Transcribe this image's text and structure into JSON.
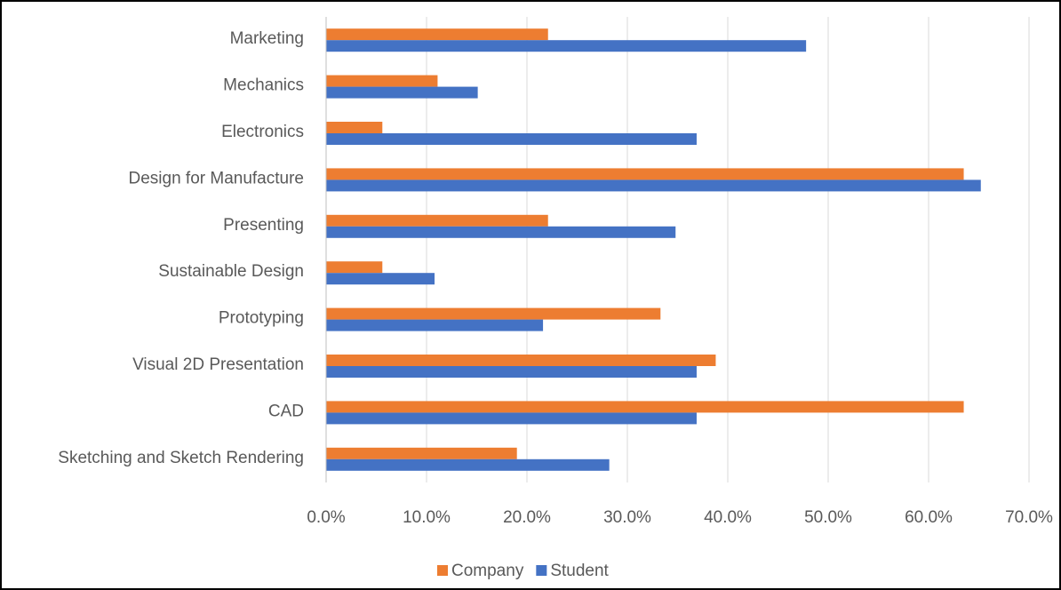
{
  "chart_data": {
    "type": "barh",
    "categories": [
      "Marketing",
      "Mechanics",
      "Electronics",
      "Design for Manufacture",
      "Presenting",
      "Sustainable Design",
      "Prototyping",
      "Visual 2D Presentation",
      "CAD",
      "Sketching and Sketch Rendering"
    ],
    "series": [
      {
        "name": "Company",
        "color": "#ed7d31",
        "values": [
          22.1,
          11.1,
          5.6,
          63.5,
          22.1,
          5.6,
          33.3,
          38.8,
          63.5,
          19.0
        ]
      },
      {
        "name": "Student",
        "color": "#4472c4",
        "values": [
          47.8,
          15.1,
          36.9,
          65.2,
          34.8,
          10.8,
          21.6,
          36.9,
          36.9,
          28.2
        ]
      }
    ],
    "xlim": [
      0,
      70
    ],
    "xticks": [
      {
        "value": 0,
        "label": "0.0%"
      },
      {
        "value": 10,
        "label": "10.0%"
      },
      {
        "value": 20,
        "label": "20.0%"
      },
      {
        "value": 30,
        "label": "30.0%"
      },
      {
        "value": 40,
        "label": "40.0%"
      },
      {
        "value": 50,
        "label": "50.0%"
      },
      {
        "value": 60,
        "label": "60.0%"
      },
      {
        "value": 70,
        "label": "70.0%"
      }
    ],
    "grid": true,
    "legend": "bottom"
  }
}
